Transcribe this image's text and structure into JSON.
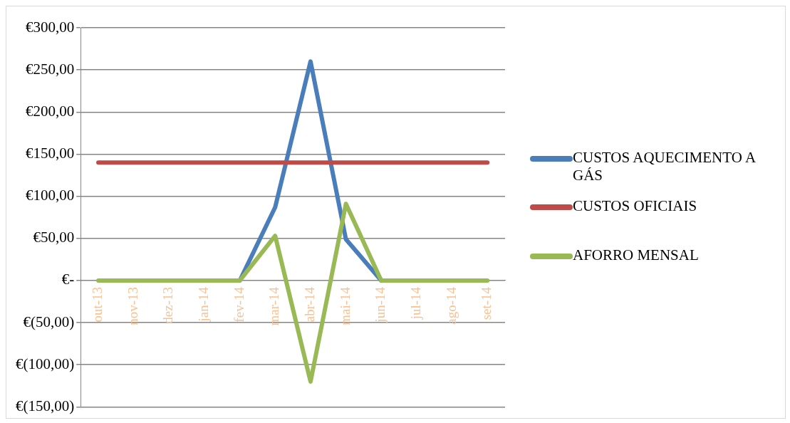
{
  "chart_data": {
    "type": "line",
    "categories": [
      "out-13",
      "nov-13",
      "dez-13",
      "jan-14",
      "fev-14",
      "mar-14",
      "abr-14",
      "mai-14",
      "jun-14",
      "jul-14",
      "ago-14",
      "set-14"
    ],
    "series": [
      {
        "name": "CUSTOS AQUECIMENTO A GÁS",
        "color": "#4a7ebb",
        "values": [
          null,
          null,
          null,
          null,
          0,
          87,
          260,
          49,
          0,
          null,
          null,
          null
        ]
      },
      {
        "name": "CUSTOS OFICIAIS",
        "color": "#be4b48",
        "values": [
          140,
          140,
          140,
          140,
          140,
          140,
          140,
          140,
          140,
          140,
          140,
          140
        ]
      },
      {
        "name": "AFORRO MENSAL",
        "color": "#98b954",
        "values": [
          0,
          0,
          0,
          0,
          0,
          53,
          -120,
          91,
          0,
          0,
          0,
          0
        ]
      }
    ],
    "ylim": [
      -150,
      300
    ],
    "yticks": [
      {
        "value": 300,
        "label": "€300,00"
      },
      {
        "value": 250,
        "label": "€250,00"
      },
      {
        "value": 200,
        "label": "€200,00"
      },
      {
        "value": 150,
        "label": "€150,00"
      },
      {
        "value": 100,
        "label": "€100,00"
      },
      {
        "value": 50,
        "label": "€50,00"
      },
      {
        "value": 0,
        "label": "€-"
      },
      {
        "value": -50,
        "label": "€(50,00)"
      },
      {
        "value": -100,
        "label": "€(100,00)"
      },
      {
        "value": -150,
        "label": "€(150,00)"
      }
    ],
    "grid": "y",
    "legend": "right",
    "marker": "none"
  }
}
